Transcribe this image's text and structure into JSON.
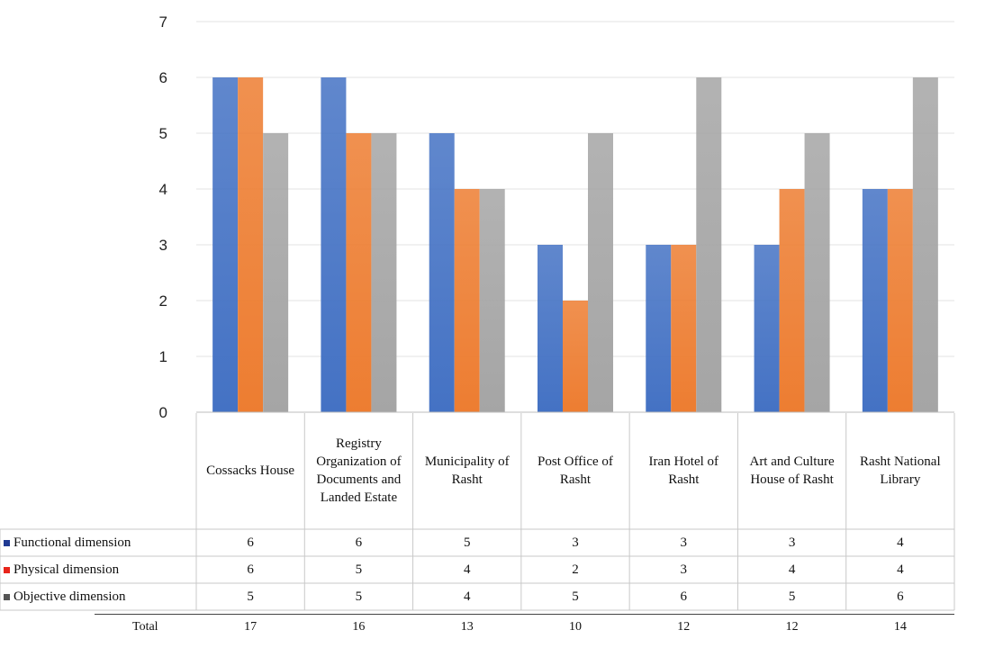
{
  "chart_data": {
    "type": "bar",
    "categories": [
      "Cossacks House",
      "Registry Organization of Documents and Landed Estate",
      "Municipality of Rasht",
      "Post Office of Rasht",
      "Iran Hotel of Rasht",
      "Art and Culture House of Rasht",
      "Rasht National Library"
    ],
    "series": [
      {
        "name": "Functional dimension",
        "color": "#4472C4",
        "values": [
          6,
          6,
          5,
          3,
          3,
          3,
          4
        ]
      },
      {
        "name": "Physical dimension",
        "color": "#ED7D31",
        "values": [
          6,
          5,
          4,
          2,
          3,
          4,
          4
        ]
      },
      {
        "name": "Objective dimension",
        "color": "#A5A5A5",
        "values": [
          5,
          5,
          4,
          5,
          6,
          5,
          6
        ]
      }
    ],
    "ylim": [
      0,
      7
    ],
    "yticks": [
      "0",
      "1",
      "2",
      "3",
      "4",
      "5",
      "6",
      "7"
    ],
    "grid": true,
    "legend": "data-table-left",
    "totals": {
      "label": "Total",
      "values": [
        "17",
        "16",
        "13",
        "10",
        "12",
        "12",
        "14"
      ]
    }
  }
}
